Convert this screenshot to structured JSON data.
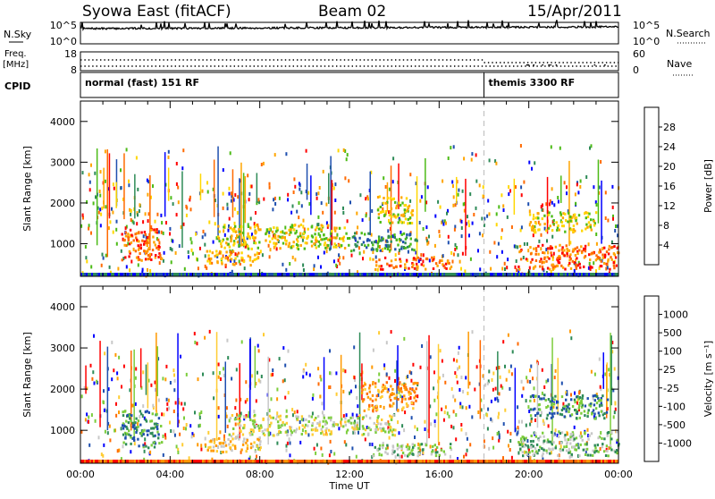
{
  "header": {
    "station": "Syowa East (fitACF)",
    "beam": "Beam 02",
    "date": "15/Apr/2011"
  },
  "top_panels": {
    "nsky": {
      "label": "N.Sky",
      "tick_top": "10^5",
      "tick_bottom": "10^0",
      "right_label": "N.Search",
      "right_tick_top": "10^5",
      "right_tick_bottom": "10^0"
    },
    "freq": {
      "label_line1": "Freq.",
      "label_line2": "[MHz]",
      "tick_top": "18",
      "tick_bottom": "8",
      "right_label": "Nave",
      "right_tick_top": "60",
      "right_tick_bottom": "0"
    },
    "cpid": {
      "label": "CPID",
      "segments": [
        {
          "text": "normal (fast) 151 RF",
          "start_hour": 0,
          "end_hour": 18
        },
        {
          "text": "themis 3300 RF",
          "start_hour": 18,
          "end_hour": 24
        }
      ]
    }
  },
  "colorbars": {
    "power": {
      "title": "Power [dB]",
      "colors": [
        "#0000ff",
        "#1f4faf",
        "#2e8b57",
        "#4cbb17",
        "#ffd700",
        "#ffa500",
        "#ff6a00",
        "#ff0000"
      ],
      "tick_labels": [
        "4",
        "8",
        "12",
        "16",
        "20",
        "24",
        "28"
      ]
    },
    "velocity": {
      "title": "Velocity  [m s⁻¹]",
      "colors": [
        "#ff0000",
        "#ff6a00",
        "#ff9900",
        "#ffcc33",
        "#c8c8c8",
        "#7ccd3c",
        "#2e8b57",
        "#1f4faf",
        "#0000ff"
      ],
      "tick_labels": [
        "-1000",
        "-500",
        "-100",
        "-25",
        "25",
        "100",
        "500",
        "1000"
      ]
    }
  },
  "chart_data": [
    {
      "type": "heatmap",
      "panel": "power",
      "title": "",
      "xlabel": "",
      "ylabel": "Slant Range [km]",
      "xlim": [
        0,
        24
      ],
      "ylim": [
        200,
        4500
      ],
      "yticks": [
        "1000",
        "2000",
        "3000",
        "4000"
      ],
      "scale_label": "Power [dB]",
      "dashed_marker_hour": 18,
      "regions": [
        {
          "x": [
            1.8,
            3.6
          ],
          "y": [
            600,
            1400
          ],
          "color_index": 6
        },
        {
          "x": [
            6.0,
            12.0
          ],
          "y": [
            900,
            1500
          ],
          "color_index": 4
        },
        {
          "x": [
            5.5,
            8.0
          ],
          "y": [
            500,
            850
          ],
          "color_index": 5
        },
        {
          "x": [
            12.0,
            15.0
          ],
          "y": [
            850,
            1300
          ],
          "color_index": 2
        },
        {
          "x": [
            13.0,
            16.5
          ],
          "y": [
            400,
            700
          ],
          "color_index": 6
        },
        {
          "x": [
            13.2,
            14.8
          ],
          "y": [
            1500,
            2200
          ],
          "color_index": 4
        },
        {
          "x": [
            19.5,
            24.0
          ],
          "y": [
            400,
            1000
          ],
          "color_index": 6
        },
        {
          "x": [
            20.0,
            23.0
          ],
          "y": [
            1300,
            1800
          ],
          "color_index": 4
        }
      ]
    },
    {
      "type": "heatmap",
      "panel": "velocity",
      "title": "",
      "xlabel": "Time UT",
      "ylabel": "Slant Range [km]",
      "xlim": [
        0,
        24
      ],
      "ylim": [
        200,
        4500
      ],
      "xticks": [
        "00:00",
        "04:00",
        "08:00",
        "12:00",
        "16:00",
        "20:00",
        "00:00"
      ],
      "yticks": [
        "1000",
        "2000",
        "3000",
        "4000"
      ],
      "scale_label": "Velocity  [m s⁻¹]",
      "dashed_marker_hour": 18,
      "regions": [
        {
          "x": [
            1.8,
            3.6
          ],
          "y": [
            600,
            1500
          ],
          "color_index": 6
        },
        {
          "x": [
            5.5,
            8.0
          ],
          "y": [
            500,
            900
          ],
          "color_index": 3
        },
        {
          "x": [
            6.5,
            14.0
          ],
          "y": [
            900,
            1400
          ],
          "color_index": 4
        },
        {
          "x": [
            12.5,
            15.0
          ],
          "y": [
            1500,
            2200
          ],
          "color_index": 2
        },
        {
          "x": [
            13.0,
            16.5
          ],
          "y": [
            400,
            700
          ],
          "color_index": 5
        },
        {
          "x": [
            19.5,
            24.0
          ],
          "y": [
            400,
            1000
          ],
          "color_index": 5
        },
        {
          "x": [
            20.0,
            23.5
          ],
          "y": [
            1300,
            1900
          ],
          "color_index": 6
        }
      ]
    }
  ]
}
